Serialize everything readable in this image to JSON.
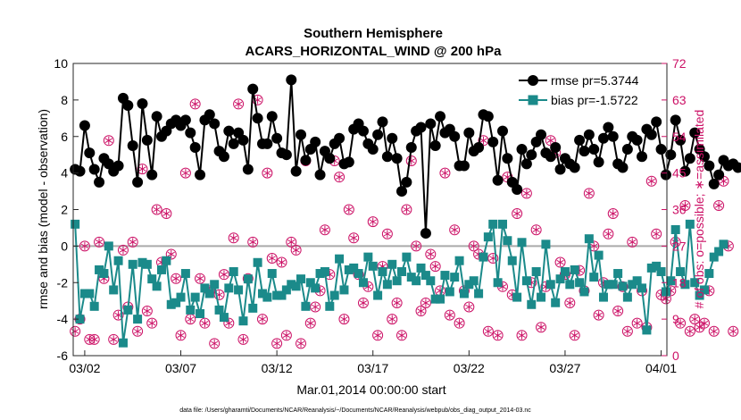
{
  "chart_data": {
    "type": "line",
    "title": "Southern Hemisphere",
    "subtitle": "ACARS_HORIZONTAL_WIND @ 200 hPa",
    "xlabel": "Mar.01,2014 00:00:00 start",
    "ylabel_left": "rmse and bias (model - observation)",
    "ylabel_right": "# of obs: o=possible; ∗=assimilated",
    "footnote": "data file: /Users/gharamti/Documents/NCAR/Reanalysis/~/Documents/NCAR/Reanalysis/webpub/obs_diag_output_2014-03.nc",
    "x_ticks": [
      "03/02",
      "03/07",
      "03/12",
      "03/17",
      "03/22",
      "03/27",
      "04/01"
    ],
    "x_tick_days": [
      1,
      6,
      11,
      16,
      21,
      26,
      31
    ],
    "xlim_days": [
      0.4,
      31.3
    ],
    "ylim_left": [
      -6,
      10
    ],
    "yticks_left": [
      -6,
      -4,
      -2,
      0,
      2,
      4,
      6,
      8,
      10
    ],
    "ylim_right": [
      0,
      72
    ],
    "yticks_right": [
      0,
      9,
      18,
      27,
      36,
      45,
      54,
      63,
      72
    ],
    "zero_line": 0,
    "legend_position": "top-right",
    "colors": {
      "rmse": "#000000",
      "bias": "#1b8a8a",
      "obs": "#cc1166",
      "zero": "#aaaaaa"
    },
    "series": [
      {
        "name": "rmse pr=5.3744",
        "axis": "left",
        "marker": "circle",
        "x_step_days": 0.25,
        "x_start_day": 0.5,
        "values": [
          4.2,
          4.1,
          6.6,
          5.1,
          4.2,
          3.5,
          4.8,
          4.5,
          4.1,
          4.4,
          8.1,
          7.7,
          5.5,
          3.5,
          7.8,
          5.8,
          3.9,
          7.1,
          6.0,
          6.3,
          6.7,
          6.9,
          6.6,
          6.9,
          6.2,
          5.4,
          3.9,
          6.9,
          7.2,
          6.7,
          5.2,
          4.9,
          6.3,
          5.6,
          6.2,
          5.8,
          4.2,
          8.6,
          7.0,
          5.6,
          5.6,
          7.1,
          5.9,
          5.1,
          5.0,
          9.1,
          4.1,
          6.1,
          4.7,
          5.3,
          5.7,
          3.9,
          5.2,
          4.8,
          5.6,
          5.9,
          4.5,
          4.6,
          6.4,
          6.7,
          6.3,
          5.6,
          5.3,
          6.1,
          6.8,
          4.9,
          5.9,
          4.8,
          3.0,
          3.5,
          5.4,
          6.3,
          6.5,
          0.7,
          6.7,
          5.5,
          7.1,
          6.2,
          6.4,
          6.0,
          4.4,
          4.4,
          6.2,
          5.2,
          5.4,
          7.2,
          7.1,
          5.7,
          3.6,
          6.3,
          4.8,
          3.5,
          3.1,
          5.3,
          4.5,
          5.0,
          5.7,
          6.1,
          5.1,
          4.9,
          5.4,
          4.2,
          4.8,
          4.5,
          4.3,
          5.8,
          5.2,
          6.1,
          5.3,
          4.6,
          5.9,
          6.5,
          6.0,
          4.5,
          4.3,
          5.3,
          6.0,
          5.8,
          4.9,
          6.4,
          6.1,
          6.8,
          5.3,
          3.9,
          5.0,
          6.9,
          5.8,
          4.1,
          4.8,
          6.2,
          5.3,
          4.9,
          4.4,
          3.4,
          3.9,
          4.7,
          4.4,
          4.5,
          4.3
        ]
      },
      {
        "name": "bias pr=-1.5722",
        "axis": "left",
        "marker": "square",
        "x_step_days": 0.25,
        "x_start_day": 0.5,
        "values": [
          1.2,
          -4.0,
          -2.6,
          -2.6,
          -3.3,
          -1.3,
          -1.5,
          0.0,
          -2.4,
          -0.8,
          -5.3,
          -3.5,
          -1.0,
          -4.0,
          -0.9,
          -1.0,
          -1.8,
          -2.2,
          -1.3,
          -0.8,
          -3.2,
          -3.1,
          -2.8,
          -1.5,
          -3.5,
          -2.8,
          -3.7,
          -2.3,
          -2.6,
          -2.1,
          -3.5,
          -3.9,
          -2.3,
          -1.4,
          -2.4,
          -4.1,
          -1.8,
          -3.4,
          -0.9,
          -2.6,
          -2.8,
          -1.5,
          -2.7,
          -2.7,
          -2.4,
          -2.1,
          -2.2,
          -1.8,
          -3.3,
          -2.0,
          -2.3,
          -1.5,
          -1.4,
          -3.3,
          -2.7,
          -0.7,
          -2.4,
          -1.3,
          -1.2,
          -1.5,
          -2.0,
          -0.6,
          -1.1,
          -2.7,
          -1.4,
          -2.1,
          -1.0,
          -1.9,
          -1.4,
          -0.6,
          -1.7,
          -1.9,
          -1.2,
          -1.6,
          -1.9,
          -2.9,
          -2.9,
          -1.6,
          -2.5,
          -1.7,
          -0.8,
          -2.6,
          -2.1,
          -1.9,
          -2.6,
          -0.6,
          0.5,
          1.2,
          -2.0,
          1.2,
          0.3,
          -0.8,
          -2.8,
          0.2,
          -1.9,
          -3.2,
          -1.4,
          -2.8,
          0.1,
          -2.1,
          -3.1,
          -1.8,
          -1.4,
          -2.1,
          -1.3,
          -2.0,
          -2.5,
          0.4,
          -1.7,
          -0.5,
          -2.8,
          -2.1,
          -2.1,
          -1.5,
          -2.2,
          -2.8,
          -2.1,
          -1.9,
          -2.3,
          -4.6,
          -1.2,
          -1.1,
          -1.4,
          -2.5,
          -1.9,
          0.9,
          -1.4,
          -2.1,
          1.2,
          -2.0,
          -2.7,
          -2.4,
          -1.5,
          -0.6,
          -0.3,
          0.1
        ]
      },
      {
        "name": "possible",
        "axis": "right",
        "marker": "open-circle",
        "x_step_days": 0.25,
        "x_start_day": 0.5,
        "values": [
          6,
          9,
          27,
          4,
          4,
          28,
          19,
          53,
          4,
          10,
          26,
          12,
          28,
          6,
          46,
          11,
          8,
          36,
          23,
          35,
          25,
          19,
          5,
          45,
          9,
          62,
          19,
          8,
          16,
          3,
          15,
          20,
          8,
          29,
          62,
          4,
          19,
          28,
          63,
          9,
          45,
          24,
          3,
          23,
          5,
          28,
          26,
          3,
          48,
          8,
          12,
          16,
          31,
          20,
          48,
          44,
          9,
          36,
          29,
          20,
          13,
          17,
          33,
          5,
          22,
          30,
          9,
          13,
          5,
          36,
          48,
          27,
          11,
          13,
          25,
          22,
          16,
          45,
          10,
          31,
          8,
          16,
          12,
          27,
          25,
          53,
          6,
          24,
          5,
          17,
          44,
          15,
          35,
          5,
          40,
          18,
          31,
          7,
          17,
          53,
          50,
          23,
          20,
          13,
          5,
          21,
          16,
          40,
          27,
          10,
          18,
          30,
          35,
          11,
          17,
          6,
          28,
          8,
          16,
          7,
          43,
          30,
          15,
          14,
          16,
          28,
          8,
          37,
          6,
          9,
          7,
          8,
          16,
          6,
          37,
          43,
          27,
          6
        ]
      },
      {
        "name": "assimilated",
        "axis": "right",
        "marker": "asterisk",
        "x_step_days": 0.25,
        "x_start_day": 0.5,
        "values": [
          6,
          9,
          27,
          4,
          4,
          28,
          19,
          53,
          4,
          10,
          26,
          12,
          28,
          6,
          46,
          11,
          8,
          36,
          23,
          35,
          25,
          19,
          5,
          45,
          9,
          62,
          19,
          8,
          16,
          3,
          15,
          20,
          8,
          29,
          62,
          4,
          19,
          28,
          63,
          9,
          45,
          24,
          3,
          23,
          5,
          28,
          26,
          3,
          48,
          8,
          12,
          16,
          31,
          20,
          48,
          44,
          9,
          36,
          29,
          20,
          13,
          17,
          33,
          5,
          22,
          30,
          9,
          13,
          5,
          36,
          48,
          27,
          11,
          13,
          25,
          22,
          16,
          45,
          10,
          31,
          8,
          16,
          12,
          27,
          25,
          53,
          6,
          24,
          5,
          17,
          44,
          15,
          35,
          5,
          40,
          18,
          31,
          7,
          17,
          53,
          50,
          23,
          20,
          13,
          5,
          21,
          16,
          40,
          27,
          10,
          18,
          30,
          35,
          11,
          17,
          6,
          28,
          8,
          16,
          7,
          43,
          30,
          15,
          14,
          16,
          28,
          8,
          37,
          6,
          9,
          7,
          8,
          16,
          6,
          37,
          43,
          27,
          6
        ]
      }
    ]
  }
}
